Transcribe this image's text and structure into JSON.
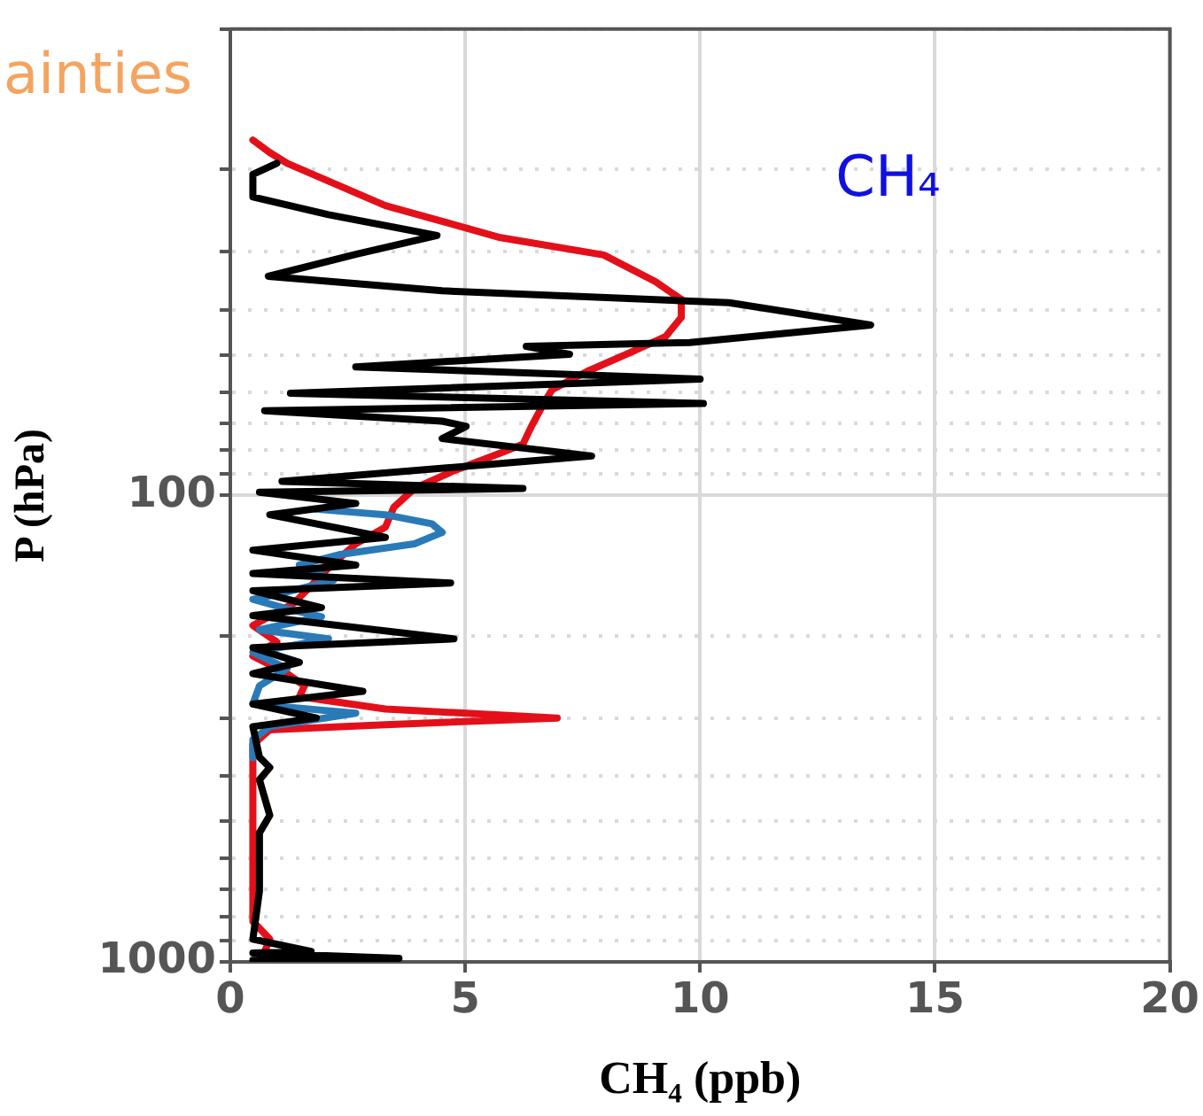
{
  "chart_data": {
    "type": "line",
    "xlabel": "CH₄ (ppb)",
    "ylabel": "P (hPa)",
    "annotations": [
      "CH₄",
      "ainties"
    ],
    "xlim": [
      0,
      20
    ],
    "xticks": [
      0,
      5,
      10,
      15,
      20
    ],
    "ylim": [
      1000,
      10
    ],
    "log": true,
    "yticks": [
      {
        "value": 10,
        "label": null
      },
      {
        "value": 20,
        "label": null
      },
      {
        "value": 30,
        "label": null
      },
      {
        "value": 40,
        "label": null
      },
      {
        "value": 50,
        "label": null
      },
      {
        "value": 60,
        "label": null
      },
      {
        "value": 70,
        "label": null
      },
      {
        "value": 80,
        "label": null
      },
      {
        "value": 90,
        "label": null
      },
      100,
      {
        "value": 200,
        "label": null
      },
      {
        "value": 300,
        "label": null
      },
      {
        "value": 400,
        "label": null
      },
      {
        "value": 500,
        "label": null
      },
      {
        "value": 600,
        "label": null
      },
      {
        "value": 700,
        "label": null
      },
      {
        "value": 800,
        "label": null
      },
      {
        "value": 900,
        "label": null
      },
      1000
    ],
    "grid": true,
    "series": [
      {
        "color": "#000000",
        "x": [
          0.99,
          0.48,
          0.48,
          2.09,
          4.4,
          2.67,
          0.81,
          4.51,
          10.62,
          13.63,
          9.78,
          6.3,
          7.22,
          2.67,
          10.0,
          1.28,
          10.07,
          0.73,
          4.51,
          5.02,
          4.51,
          7.69,
          1.1,
          6.23,
          0.62,
          2.67,
          0.84,
          3.3,
          0.48,
          2.67,
          0.48,
          4.69,
          0.48,
          1.94,
          0.48,
          4.76,
          0.48,
          1.47,
          0.48,
          2.82,
          0.48,
          1.83,
          0.48,
          0.62,
          0.84,
          0.62,
          0.84,
          0.62,
          0.62,
          0.48,
          1.72,
          0.48,
          3.59,
          0.48
        ],
        "values": [
          19.4,
          20.5,
          22.9,
          25.0,
          27.7,
          30.4,
          33.9,
          36.4,
          38.6,
          43.1,
          47.0,
          47.9,
          49.8,
          53.0,
          56.3,
          60.4,
          63.5,
          65.8,
          69.3,
          71.1,
          75.5,
          82.3,
          93.3,
          96.6,
          98.4,
          104,
          110,
          123,
          131,
          141,
          147,
          154,
          160,
          174,
          181,
          203,
          212,
          228,
          241,
          263,
          280,
          300,
          313,
          364,
          383,
          407,
          485,
          529,
          705,
          894,
          950,
          957,
          983,
          991
        ]
      },
      {
        "color": "#2a7ab8",
        "x": [
          1.83,
          3.3,
          4.29,
          4.51,
          3.92,
          2.31,
          1.47,
          2.2,
          0.99,
          0.48,
          1.21,
          1.94,
          0.62,
          2.09,
          0.48,
          1.21,
          0.62,
          0.48,
          2.67,
          0.84,
          0.48,
          0.48
        ],
        "values": [
          107,
          110,
          115,
          120,
          127,
          134,
          141,
          152,
          163,
          167,
          175,
          182,
          194,
          203,
          217,
          235,
          256,
          280,
          293,
          313,
          334,
          365
        ]
      },
      {
        "color": "#e3101a",
        "x": [
          0.48,
          0.84,
          1.21,
          3.3,
          5.75,
          7.95,
          9.05,
          9.6,
          9.6,
          9.27,
          8.53,
          7.58,
          6.85,
          6.67,
          6.41,
          6.23,
          5.75,
          4.76,
          3.92,
          3.48,
          3.3,
          2.67,
          2.09,
          1.36,
          0.48,
          0.99,
          0.48,
          1.21,
          1.58,
          1.47,
          3.3,
          6.96,
          3.3,
          0.84,
          0.48,
          0.48,
          0.84,
          0.73
        ],
        "values": [
          17.3,
          18.4,
          19.4,
          23.9,
          28.0,
          30.5,
          34.8,
          38.0,
          41.5,
          45.6,
          49.3,
          54.3,
          59.3,
          63.5,
          71.1,
          77.6,
          81.1,
          88.5,
          96.6,
          106,
          117,
          127,
          143,
          170,
          190,
          206,
          221,
          241,
          256,
          270,
          287,
          300,
          310,
          318,
          342,
          819,
          894,
          950
        ]
      }
    ]
  }
}
